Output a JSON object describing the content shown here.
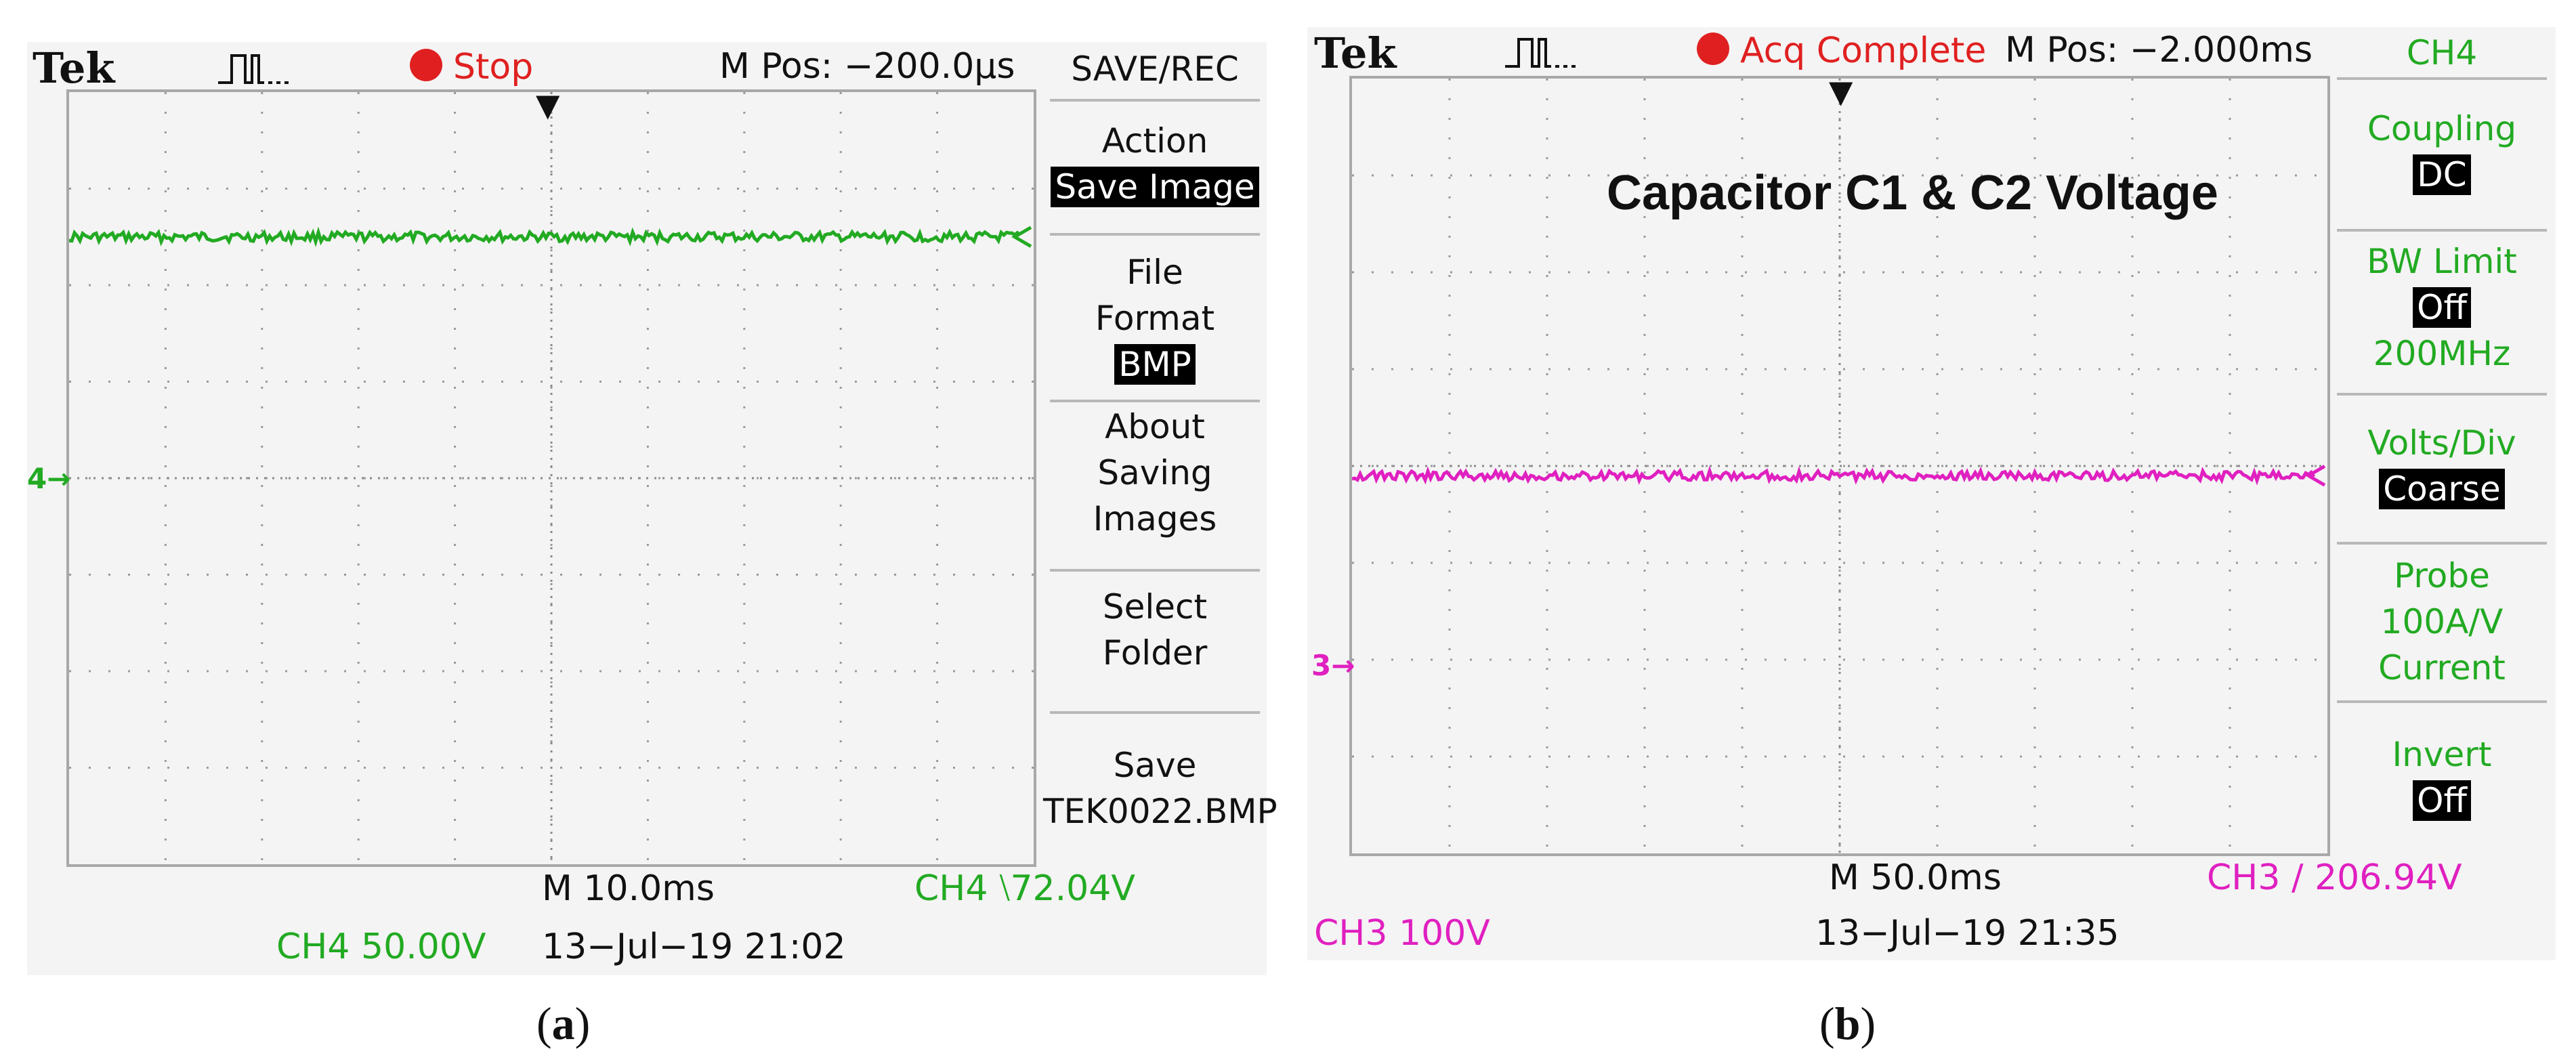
{
  "colors": {
    "ch4": "#22aa22",
    "ch3": "#e020c0",
    "stop": "#e02020",
    "panel": "#f4f4f4",
    "grid": "#a8a8a8"
  },
  "scope_a": {
    "brand": "Tek",
    "status": "Stop",
    "mpos": "M Pos: −200.0µs",
    "ground_marker": "4→",
    "menu": {
      "title": "SAVE/REC",
      "action_label": "Action",
      "action_value": "Save Image",
      "file_label_1": "File",
      "file_label_2": "Format",
      "file_value": "BMP",
      "about_1": "About",
      "about_2": "Saving",
      "about_3": "Images",
      "select_1": "Select",
      "select_2": "Folder",
      "save_1": "Save",
      "save_2": "TEK0022.BMP"
    },
    "timebase": "M 10.0ms",
    "trigger": "CH4 ⧵72.04V",
    "channel_scale": "CH4  50.00V",
    "datetime": "13−Jul−19 21:02",
    "trace_level_div": 1.5
  },
  "scope_b": {
    "brand": "Tek",
    "status": "Acq Complete",
    "mpos": "M Pos: −2.000ms",
    "overlay_title": "Capacitor C1 & C2 Voltage",
    "ground_marker": "3→",
    "menu": {
      "title": "CH4",
      "coupling_label": "Coupling",
      "coupling_value": "DC",
      "bw_label": "BW Limit",
      "bw_value": "Off",
      "bw_freq": "200MHz",
      "vdiv_label": "Volts/Div",
      "vdiv_value": "Coarse",
      "probe_label": "Probe",
      "probe_value": "100A/V",
      "probe_type": "Current",
      "invert_label": "Invert",
      "invert_value": "Off"
    },
    "timebase": "M 50.0ms",
    "trigger": "CH3 ∕ 206.94V",
    "channel_scale": "CH3  100V",
    "datetime": "13−Jul−19  21:35",
    "trace_level_div": 4.1
  },
  "captions": {
    "a": "a",
    "b": "b"
  }
}
